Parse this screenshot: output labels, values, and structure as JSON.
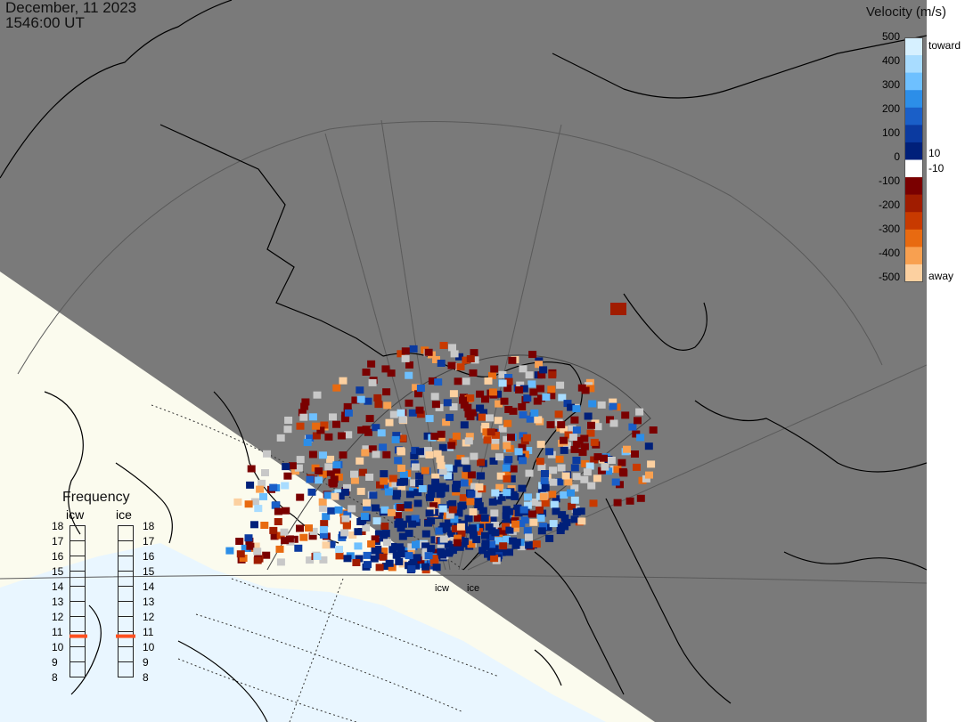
{
  "header": {
    "date": "December, 11 2023",
    "time": "1546:00 UT"
  },
  "colorbar": {
    "title": "Velocity (m/s)",
    "ticks": [
      "500",
      "400",
      "300",
      "200",
      "100",
      "10",
      "0",
      "-10",
      "-100",
      "-200",
      "-300",
      "-400",
      "-500"
    ],
    "toward_label": "toward",
    "away_label": "away",
    "colors": [
      "#d6f0ff",
      "#a8dcff",
      "#6ec0ff",
      "#2c8ee8",
      "#1a5fc8",
      "#0b3aa0",
      "#00207a",
      "#ffffff",
      "#7a0000",
      "#a01c00",
      "#c83a00",
      "#e86a10",
      "#f8a050",
      "#fcd0a0"
    ]
  },
  "frequency": {
    "title": "Frequency",
    "columns": [
      {
        "name": "icw",
        "value": 10.7
      },
      {
        "name": "ice",
        "value": 10.7
      }
    ],
    "scale": [
      "18",
      "17",
      "16",
      "15",
      "14",
      "13",
      "12",
      "11",
      "10",
      "9",
      "8"
    ],
    "marker_color": "#ff5020"
  },
  "radars": [
    {
      "label": "icw"
    },
    {
      "label": "ice"
    }
  ],
  "map": {
    "night_color": "#7a7a7a",
    "day_land_color": "#fbfbee",
    "day_water_color": "#e9f6ff",
    "ground_scatter_color": "#c8c8c8",
    "coastline_color": "#000000"
  }
}
